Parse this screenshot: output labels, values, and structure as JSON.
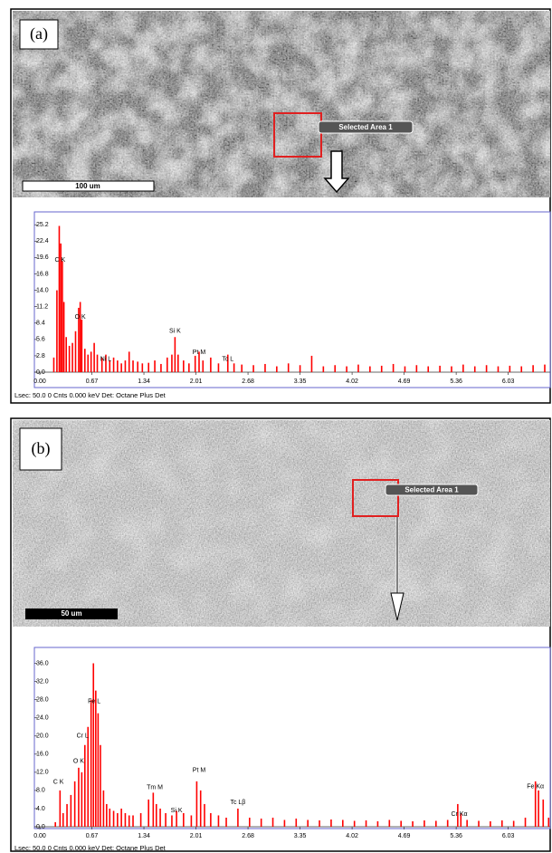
{
  "panels": [
    {
      "label": "(a)",
      "selection_label": "Selected Area 1",
      "scale_bar": "100 um",
      "footer": "Lsec: 50.0 0 Cnts  0.000 keV Det: Octane Plus Det"
    },
    {
      "label": "(b)",
      "selection_label": "Selected Area 1",
      "scale_bar": "50 um",
      "footer": "Lsec: 50.0 0 Cnts  0.000 keV Det: Octane Plus Det"
    }
  ],
  "chart_data": [
    {
      "type": "bar",
      "color": "#ff0000",
      "x": [
        0.18,
        0.22,
        0.25,
        0.27,
        0.29,
        0.31,
        0.34,
        0.38,
        0.42,
        0.46,
        0.5,
        0.52,
        0.54,
        0.58,
        0.62,
        0.66,
        0.7,
        0.74,
        0.8,
        0.85,
        0.9,
        0.95,
        1.0,
        1.05,
        1.1,
        1.15,
        1.2,
        1.26,
        1.32,
        1.4,
        1.48,
        1.56,
        1.64,
        1.7,
        1.74,
        1.78,
        1.85,
        1.92,
        2.0,
        2.05,
        2.1,
        2.2,
        2.3,
        2.42,
        2.5,
        2.6,
        2.75,
        2.9,
        3.05,
        3.2,
        3.35,
        3.5,
        3.65,
        3.8,
        3.95,
        4.1,
        4.25,
        4.4,
        4.55,
        4.7,
        4.85,
        5.0,
        5.15,
        5.3,
        5.45,
        5.6,
        5.75,
        5.9,
        6.05,
        6.2,
        6.35,
        6.5
      ],
      "values": [
        2.5,
        14,
        25,
        22,
        19,
        12,
        6,
        4.5,
        5,
        7,
        11,
        12,
        9,
        4,
        3,
        3.5,
        5,
        3,
        2.5,
        3,
        2,
        2.5,
        2,
        1.5,
        2,
        3.5,
        2,
        1.8,
        1.5,
        1.6,
        2,
        1.4,
        2.5,
        3,
        6,
        3,
        2,
        1.5,
        2.8,
        3.5,
        2,
        2.5,
        1.5,
        3,
        1.5,
        1.3,
        1.2,
        1.4,
        1,
        1.5,
        1.2,
        2.8,
        1,
        1.2,
        1,
        1.3,
        1,
        1.1,
        1.4,
        1,
        1.2,
        1,
        1.1,
        1,
        1.3,
        1,
        1.2,
        1,
        1.1,
        1,
        1.2,
        1.3
      ],
      "peaks": [
        {
          "label": "C  K",
          "x": 0.26,
          "y": 19.2
        },
        {
          "label": "O  K",
          "x": 0.52,
          "y": 9.4
        },
        {
          "label": "Ni L",
          "x": 0.85,
          "y": 2.2
        },
        {
          "label": "Si K",
          "x": 1.74,
          "y": 7.0
        },
        {
          "label": "Pt M",
          "x": 2.05,
          "y": 3.4
        },
        {
          "label": "Tc L",
          "x": 2.42,
          "y": 2.2
        }
      ],
      "xlim": [
        -0.07,
        6.57
      ],
      "ylim": [
        0,
        27.4
      ],
      "xticks": [
        {
          "value": 0,
          "label": "0.00"
        },
        0.67,
        1.34,
        2.01,
        2.68,
        3.35,
        4.02,
        4.69,
        5.36,
        6.03
      ],
      "yticks": [
        {
          "value": 0,
          "label": "0.0"
        },
        2.8,
        5.6,
        8.4,
        11.2,
        {
          "value": 14,
          "label": "14.0"
        },
        16.8,
        19.6,
        22.4,
        25.2
      ]
    },
    {
      "type": "bar",
      "color": "#ff0000",
      "x": [
        0.2,
        0.26,
        0.3,
        0.35,
        0.4,
        0.45,
        0.5,
        0.54,
        0.58,
        0.62,
        0.66,
        0.69,
        0.72,
        0.75,
        0.78,
        0.82,
        0.86,
        0.9,
        0.95,
        1.0,
        1.05,
        1.1,
        1.15,
        1.2,
        1.3,
        1.4,
        1.46,
        1.5,
        1.55,
        1.62,
        1.7,
        1.76,
        1.85,
        1.95,
        2.02,
        2.07,
        2.12,
        2.2,
        2.3,
        2.4,
        2.55,
        2.7,
        2.85,
        3.0,
        3.15,
        3.3,
        3.45,
        3.6,
        3.75,
        3.9,
        4.05,
        4.2,
        4.35,
        4.5,
        4.65,
        4.8,
        4.95,
        5.1,
        5.25,
        5.38,
        5.42,
        5.5,
        5.65,
        5.8,
        5.95,
        6.1,
        6.25,
        6.38,
        6.42,
        6.48,
        6.55
      ],
      "values": [
        1,
        8,
        3,
        5,
        7,
        10,
        13,
        12,
        18,
        22,
        28,
        36,
        30,
        25,
        18,
        8,
        5,
        4,
        3.5,
        3,
        4,
        3,
        2.5,
        2.5,
        3,
        6,
        7.5,
        5,
        4,
        3,
        2.5,
        3.5,
        3,
        2.5,
        10,
        8,
        5,
        3,
        2.5,
        2,
        4,
        2,
        1.8,
        2,
        1.5,
        1.8,
        1.5,
        1.4,
        1.6,
        1.5,
        1.3,
        1.4,
        1.2,
        1.5,
        1.3,
        1.2,
        1.4,
        1.3,
        1.5,
        5,
        3,
        1.5,
        1.3,
        1.2,
        1.4,
        1.3,
        2,
        10,
        8,
        6,
        2
      ],
      "peaks": [
        {
          "label": "C  K",
          "x": 0.24,
          "y": 9.8
        },
        {
          "label": "O  K",
          "x": 0.5,
          "y": 14.4
        },
        {
          "label": "Cr L",
          "x": 0.55,
          "y": 20.0
        },
        {
          "label": "Fe L",
          "x": 0.7,
          "y": 27.6
        },
        {
          "label": "Tm M",
          "x": 1.48,
          "y": 8.6
        },
        {
          "label": "Si K",
          "x": 1.76,
          "y": 3.6
        },
        {
          "label": "Pt M",
          "x": 2.05,
          "y": 12.4
        },
        {
          "label": "Tc Lβ",
          "x": 2.55,
          "y": 5.4
        },
        {
          "label": "Cr Kα",
          "x": 5.4,
          "y": 2.8
        },
        {
          "label": "Fe Kα",
          "x": 6.38,
          "y": 8.8
        }
      ],
      "xlim": [
        -0.07,
        6.57
      ],
      "ylim": [
        0,
        39.5
      ],
      "xticks": [
        {
          "value": 0,
          "label": "0.00"
        },
        0.67,
        1.34,
        2.01,
        2.68,
        3.35,
        4.02,
        4.69,
        5.36,
        6.03
      ],
      "yticks": [
        {
          "value": 0,
          "label": "0.0"
        },
        {
          "value": 4,
          "label": "4.0"
        },
        {
          "value": 8,
          "label": "8.0"
        },
        {
          "value": 12,
          "label": "12.0"
        },
        {
          "value": 16,
          "label": "16.0"
        },
        {
          "value": 20,
          "label": "20.0"
        },
        {
          "value": 24,
          "label": "24.0"
        },
        {
          "value": 28,
          "label": "28.0"
        },
        {
          "value": 32,
          "label": "32.0"
        },
        {
          "value": 36,
          "label": "36.0"
        }
      ]
    }
  ]
}
